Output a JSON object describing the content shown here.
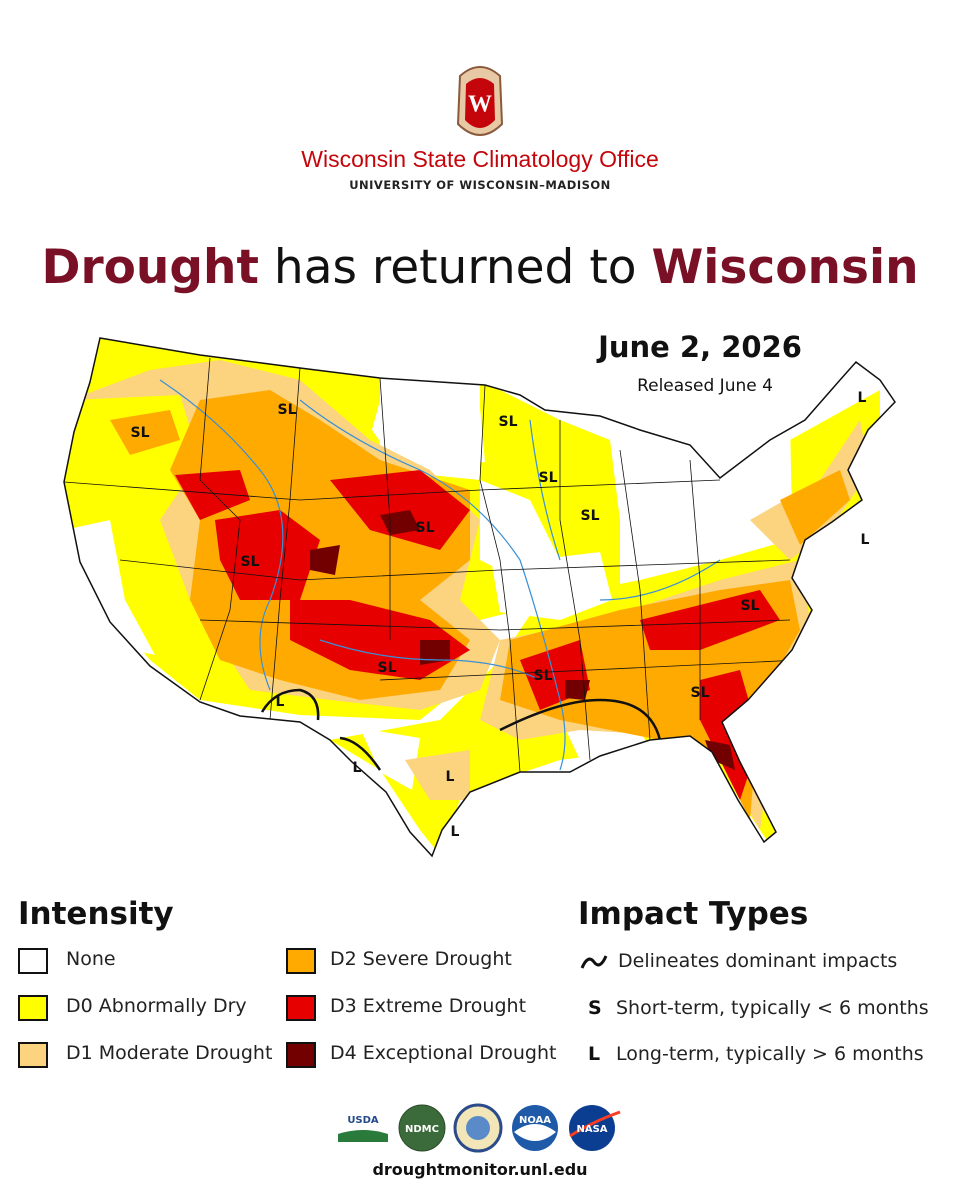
{
  "header": {
    "office": "Wisconsin State Climatology Office",
    "university": "UNIVERSITY OF WISCONSIN–MADISON",
    "crest": "W"
  },
  "title": {
    "parts": [
      "Drought",
      "has returned to",
      "Wisconsin"
    ]
  },
  "map": {
    "date": "June 2, 2026",
    "released": "Released June 4",
    "labels": [
      "SL",
      "SL",
      "SL",
      "SL",
      "SL",
      "SL",
      "SL",
      "SL",
      "SL",
      "SL",
      "SL",
      "L",
      "L",
      "L",
      "L",
      "L",
      "L"
    ]
  },
  "intensity": {
    "title": "Intensity",
    "items": [
      {
        "label": "None",
        "color": "#ffffff"
      },
      {
        "label": "D0 Abnormally Dry",
        "color": "#ffff00"
      },
      {
        "label": "D1 Moderate Drought",
        "color": "#fcd37f"
      },
      {
        "label": "D2 Severe Drought",
        "color": "#ffaa00"
      },
      {
        "label": "D3 Extreme Drought",
        "color": "#e60000"
      },
      {
        "label": "D4 Exceptional Drought",
        "color": "#730000"
      }
    ]
  },
  "impacts": {
    "title": "Impact Types",
    "items": [
      {
        "text": "Delineates dominant impacts"
      },
      {
        "symbol": "S",
        "text": "Short-term, typically < 6 months"
      },
      {
        "symbol": "L",
        "text": "Long-term, typically > 6 months"
      }
    ]
  },
  "footer": {
    "logos": [
      "USDA",
      "NDMC",
      "NOAA",
      "NASA"
    ],
    "url": "droughtmonitor.unl.edu"
  }
}
